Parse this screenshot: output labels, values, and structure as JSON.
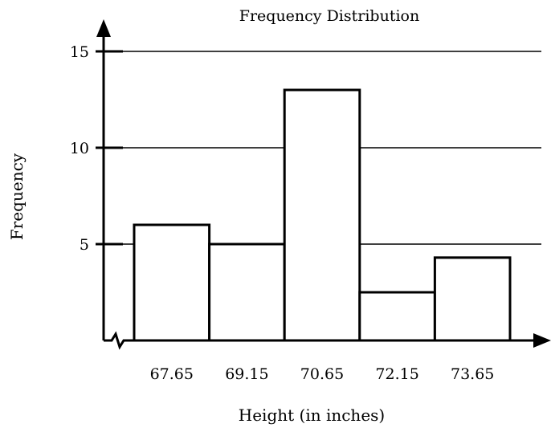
{
  "chart_data": {
    "type": "bar",
    "title": "Frequency Distribution",
    "xlabel": "Height (in inches)",
    "ylabel": "Frequency",
    "categories": [
      "67.65",
      "69.15",
      "70.65",
      "72.15",
      "73.65"
    ],
    "values": [
      6,
      5,
      13,
      2.5,
      4.3
    ],
    "ylim": [
      0,
      15
    ],
    "yticks": [
      5,
      10,
      15
    ],
    "grid": true,
    "axis_break": true,
    "colors": {
      "bar_fill": "#ffffff",
      "bar_stroke": "#000000",
      "grid": "#000000"
    }
  }
}
